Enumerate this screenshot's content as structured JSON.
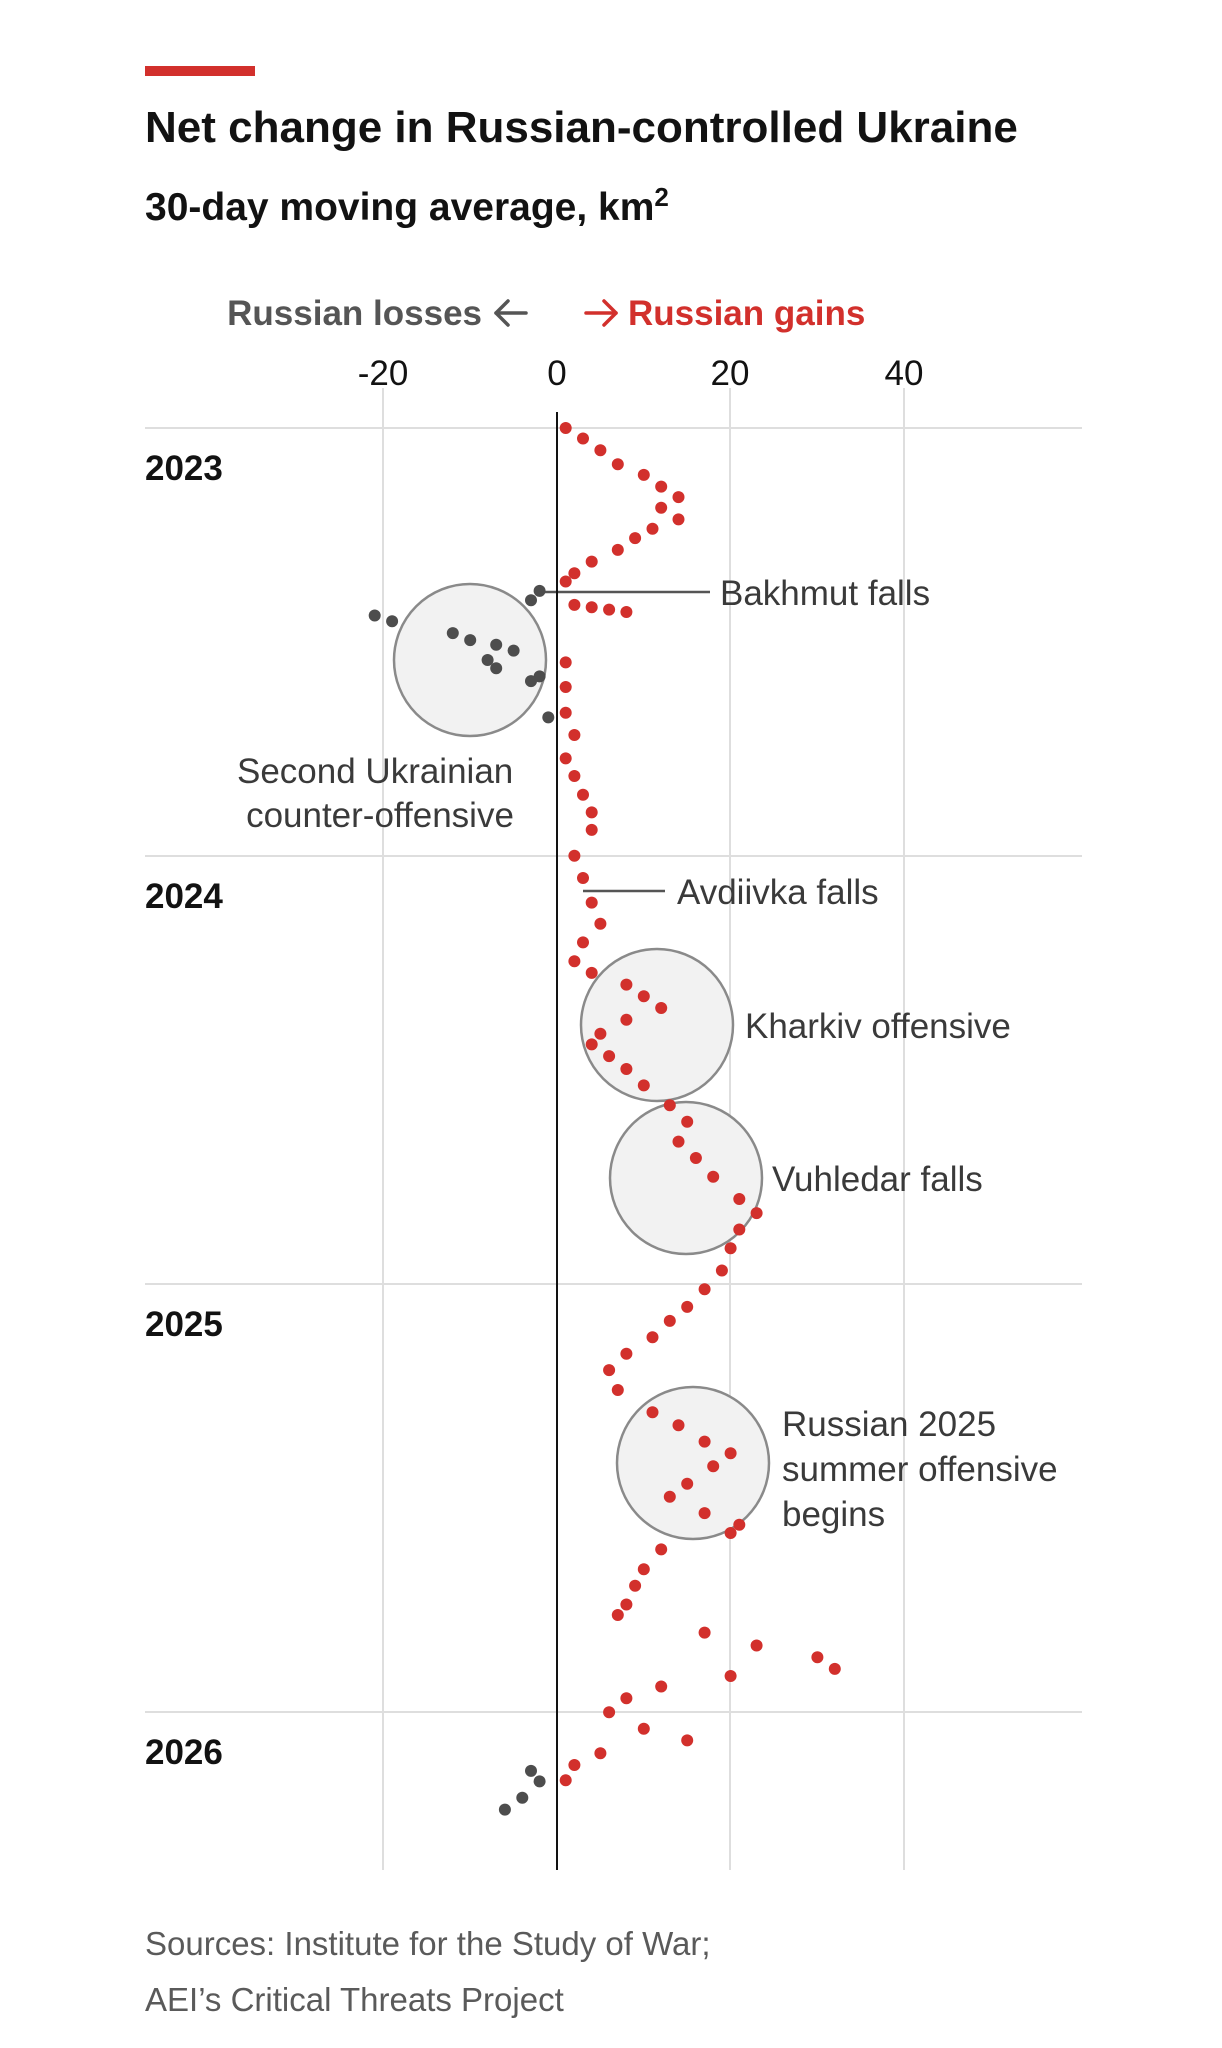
{
  "chart_data": {
    "type": "scatter",
    "title": "Net change in Russian-controlled Ukraine",
    "subtitle": "30-day moving average, km",
    "subtitle_superscript": "2",
    "direction_labels": {
      "negative": "Russian losses",
      "positive": "Russian gains"
    },
    "x_ticks": [
      "-20",
      "0",
      "20",
      "40"
    ],
    "xlim": [
      -47,
      60
    ],
    "y_axis": "date (top = Jan 2023, bottom = early 2026)",
    "y_ticks": [
      "2023",
      "2024",
      "2025",
      "2026"
    ],
    "grid": true,
    "colors": {
      "gains": "#d2302c",
      "losses": "#4d4d4d",
      "accent": "#d2302c",
      "bubble": "#f2f2f2"
    },
    "series": [
      {
        "color": "gains",
        "points": [
          [
            "2023-01-01",
            1
          ],
          [
            "2023-01-10",
            3
          ],
          [
            "2023-01-20",
            5
          ],
          [
            "2023-02-01",
            7
          ],
          [
            "2023-02-10",
            10
          ],
          [
            "2023-02-20",
            12
          ],
          [
            "2023-03-01",
            14
          ],
          [
            "2023-03-10",
            12
          ],
          [
            "2023-03-20",
            14
          ],
          [
            "2023-03-28",
            11
          ],
          [
            "2023-04-05",
            9
          ],
          [
            "2023-04-15",
            7
          ],
          [
            "2023-04-25",
            4
          ],
          [
            "2023-05-05",
            2
          ],
          [
            "2023-05-12",
            1
          ],
          [
            "2023-06-01",
            2
          ],
          [
            "2023-06-03",
            4
          ],
          [
            "2023-06-05",
            6
          ],
          [
            "2023-06-07",
            8
          ],
          [
            "2023-07-20",
            1
          ],
          [
            "2023-08-10",
            1
          ],
          [
            "2023-09-01",
            1
          ],
          [
            "2023-09-20",
            2
          ],
          [
            "2023-10-10",
            1
          ],
          [
            "2023-10-25",
            2
          ],
          [
            "2023-11-10",
            3
          ],
          [
            "2023-11-25",
            4
          ],
          [
            "2023-12-10",
            4
          ],
          [
            "2024-01-01",
            2
          ],
          [
            "2024-01-20",
            3
          ],
          [
            "2024-02-10",
            4
          ],
          [
            "2024-02-28",
            5
          ],
          [
            "2024-03-15",
            3
          ],
          [
            "2024-03-31",
            2
          ],
          [
            "2024-04-10",
            4
          ],
          [
            "2024-04-20",
            8
          ],
          [
            "2024-04-30",
            10
          ],
          [
            "2024-05-10",
            12
          ],
          [
            "2024-05-20",
            8
          ],
          [
            "2024-06-01",
            5
          ],
          [
            "2024-06-10",
            4
          ],
          [
            "2024-06-20",
            6
          ],
          [
            "2024-07-01",
            8
          ],
          [
            "2024-07-15",
            10
          ],
          [
            "2024-08-01",
            13
          ],
          [
            "2024-08-15",
            15
          ],
          [
            "2024-09-01",
            14
          ],
          [
            "2024-09-15",
            16
          ],
          [
            "2024-10-01",
            18
          ],
          [
            "2024-10-20",
            21
          ],
          [
            "2024-11-01",
            23
          ],
          [
            "2024-11-15",
            21
          ],
          [
            "2024-12-01",
            20
          ],
          [
            "2024-12-20",
            19
          ],
          [
            "2025-01-05",
            17
          ],
          [
            "2025-01-20",
            15
          ],
          [
            "2025-02-01",
            13
          ],
          [
            "2025-02-15",
            11
          ],
          [
            "2025-03-01",
            8
          ],
          [
            "2025-03-15",
            6
          ],
          [
            "2025-04-01",
            7
          ],
          [
            "2025-04-20",
            11
          ],
          [
            "2025-05-01",
            14
          ],
          [
            "2025-05-15",
            17
          ],
          [
            "2025-05-25",
            20
          ],
          [
            "2025-06-05",
            18
          ],
          [
            "2025-06-20",
            15
          ],
          [
            "2025-07-01",
            13
          ],
          [
            "2025-07-15",
            17
          ],
          [
            "2025-07-25",
            21
          ],
          [
            "2025-08-01",
            20
          ],
          [
            "2025-08-15",
            12
          ],
          [
            "2025-09-01",
            10
          ],
          [
            "2025-09-15",
            9
          ],
          [
            "2025-10-01",
            8
          ],
          [
            "2025-10-10",
            7
          ],
          [
            "2025-10-25",
            17
          ],
          [
            "2025-11-05",
            23
          ],
          [
            "2025-11-15",
            30
          ],
          [
            "2025-11-25",
            32
          ],
          [
            "2025-12-01",
            20
          ],
          [
            "2025-12-10",
            12
          ],
          [
            "2025-12-20",
            8
          ],
          [
            "2026-01-01",
            6
          ],
          [
            "2026-01-15",
            10
          ],
          [
            "2026-01-25",
            15
          ],
          [
            "2026-02-05",
            5
          ],
          [
            "2026-02-15",
            2
          ],
          [
            "2026-02-28",
            1
          ]
        ]
      },
      {
        "color": "losses",
        "points": [
          [
            "2023-05-20",
            -2
          ],
          [
            "2023-05-28",
            -3
          ],
          [
            "2023-06-10",
            -21
          ],
          [
            "2023-06-15",
            -19
          ],
          [
            "2023-06-25",
            -12
          ],
          [
            "2023-07-01",
            -10
          ],
          [
            "2023-07-05",
            -7
          ],
          [
            "2023-07-10",
            -5
          ],
          [
            "2023-07-18",
            -8
          ],
          [
            "2023-07-25",
            -7
          ],
          [
            "2023-08-01",
            -2
          ],
          [
            "2023-08-05",
            -3
          ],
          [
            "2023-09-05",
            -1
          ],
          [
            "2026-02-20",
            -3
          ],
          [
            "2026-03-01",
            -2
          ],
          [
            "2026-03-15",
            -4
          ],
          [
            "2026-03-25",
            -6
          ]
        ]
      }
    ],
    "annotations": [
      {
        "lines": [
          "Bakhmut falls"
        ]
      },
      {
        "lines": [
          "Second Ukrainian",
          "counter-offensive"
        ]
      },
      {
        "lines": [
          "Avdiivka falls"
        ]
      },
      {
        "lines": [
          "Kharkiv offensive"
        ]
      },
      {
        "lines": [
          "Vuhledar falls"
        ]
      },
      {
        "lines": [
          "Russian 2025",
          "summer offensive",
          "begins"
        ]
      }
    ]
  },
  "source": {
    "line1": "Sources: Institute for the Study of War;",
    "line2": "AEI’s Critical Threats Project"
  }
}
